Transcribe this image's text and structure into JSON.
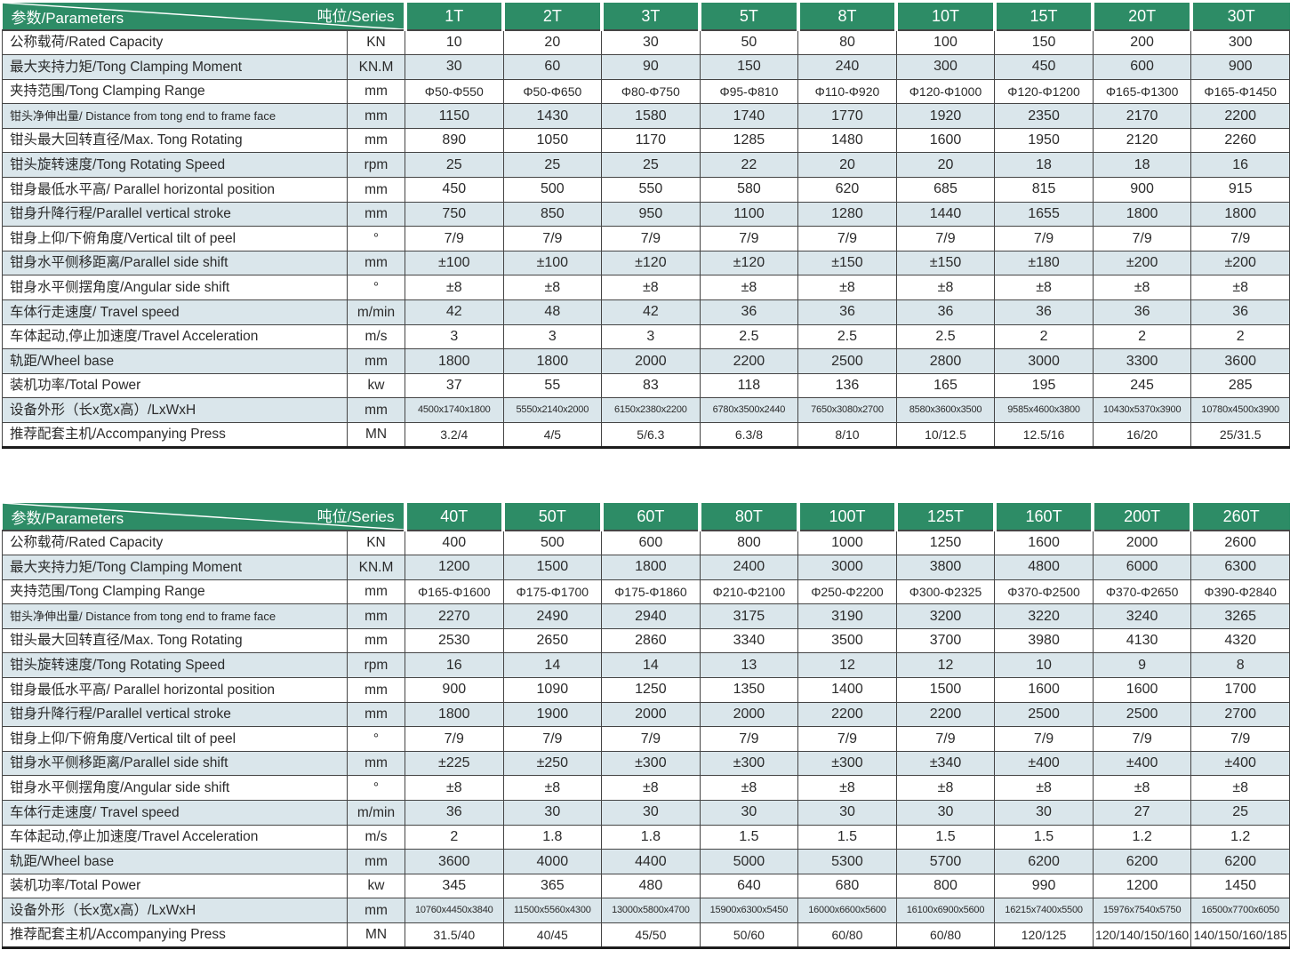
{
  "header": {
    "param_label": "参数/Parameters",
    "series_label": "吨位/Series"
  },
  "colors": {
    "header_green": "#2d8c66",
    "row_alt": "#dae6eb",
    "border": "#454545",
    "text": "#2b2b2b"
  },
  "row_labels": [
    {
      "label": "公称载荷/Rated Capacity",
      "unit": "KN"
    },
    {
      "label": "最大夹持力矩/Tong Clamping Moment",
      "unit": "KN.M"
    },
    {
      "label": "夹持范围/Tong Clamping Range",
      "unit": "mm",
      "data_size": "small"
    },
    {
      "label": "钳头净伸出量/ Distance from tong end to frame face",
      "unit": "mm",
      "label_size": "condensed"
    },
    {
      "label": "钳头最大回转直径/Max. Tong Rotating",
      "unit": "mm"
    },
    {
      "label": "钳头旋转速度/Tong Rotating Speed",
      "unit": "rpm"
    },
    {
      "label": "钳身最低水平高/ Parallel horizontal position",
      "unit": "mm"
    },
    {
      "label": "钳身升降行程/Parallel vertical stroke",
      "unit": "mm"
    },
    {
      "label": "钳身上仰/下俯角度/Vertical tilt of peel",
      "unit": "°"
    },
    {
      "label": "钳身水平侧移距离/Parallel side shift",
      "unit": "mm"
    },
    {
      "label": "钳身水平侧摆角度/Angular side shift",
      "unit": "°"
    },
    {
      "label": "车体行走速度/ Travel speed",
      "unit": "m/min"
    },
    {
      "label": "车体起动,停止加速度/Travel Acceleration",
      "unit": "m/s"
    },
    {
      "label": "轨距/Wheel base",
      "unit": "mm"
    },
    {
      "label": "装机功率/Total Power",
      "unit": "kw"
    },
    {
      "label": "设备外形（长x宽x高）/LxWxH",
      "unit": "mm",
      "data_size": "xsmall"
    },
    {
      "label": "推荐配套主机/Accompanying Press",
      "unit": "MN",
      "data_size": "small"
    }
  ],
  "tables": [
    {
      "columns": [
        "1T",
        "2T",
        "3T",
        "5T",
        "8T",
        "10T",
        "15T",
        "20T",
        "30T"
      ],
      "rows": [
        [
          "10",
          "20",
          "30",
          "50",
          "80",
          "100",
          "150",
          "200",
          "300"
        ],
        [
          "30",
          "60",
          "90",
          "150",
          "240",
          "300",
          "450",
          "600",
          "900"
        ],
        [
          "Φ50-Φ550",
          "Φ50-Φ650",
          "Φ80-Φ750",
          "Φ95-Φ810",
          "Φ110-Φ920",
          "Φ120-Φ1000",
          "Φ120-Φ1200",
          "Φ165-Φ1300",
          "Φ165-Φ1450"
        ],
        [
          "1150",
          "1430",
          "1580",
          "1740",
          "1770",
          "1920",
          "2350",
          "2170",
          "2200"
        ],
        [
          "890",
          "1050",
          "1170",
          "1285",
          "1480",
          "1600",
          "1950",
          "2120",
          "2260"
        ],
        [
          "25",
          "25",
          "25",
          "22",
          "20",
          "20",
          "18",
          "18",
          "16"
        ],
        [
          "450",
          "500",
          "550",
          "580",
          "620",
          "685",
          "815",
          "900",
          "915"
        ],
        [
          "750",
          "850",
          "950",
          "1100",
          "1280",
          "1440",
          "1655",
          "1800",
          "1800"
        ],
        [
          "7/9",
          "7/9",
          "7/9",
          "7/9",
          "7/9",
          "7/9",
          "7/9",
          "7/9",
          "7/9"
        ],
        [
          "±100",
          "±100",
          "±120",
          "±120",
          "±150",
          "±150",
          "±180",
          "±200",
          "±200"
        ],
        [
          "±8",
          "±8",
          "±8",
          "±8",
          "±8",
          "±8",
          "±8",
          "±8",
          "±8"
        ],
        [
          "42",
          "48",
          "42",
          "36",
          "36",
          "36",
          "36",
          "36",
          "36"
        ],
        [
          "3",
          "3",
          "3",
          "2.5",
          "2.5",
          "2.5",
          "2",
          "2",
          "2"
        ],
        [
          "1800",
          "1800",
          "2000",
          "2200",
          "2500",
          "2800",
          "3000",
          "3300",
          "3600"
        ],
        [
          "37",
          "55",
          "83",
          "118",
          "136",
          "165",
          "195",
          "245",
          "285"
        ],
        [
          "4500x1740x1800",
          "5550x2140x2000",
          "6150x2380x2200",
          "6780x3500x2440",
          "7650x3080x2700",
          "8580x3600x3500",
          "9585x4600x3800",
          "10430x5370x3900",
          "10780x4500x3900"
        ],
        [
          "3.2/4",
          "4/5",
          "5/6.3",
          "6.3/8",
          "8/10",
          "10/12.5",
          "12.5/16",
          "16/20",
          "25/31.5"
        ]
      ]
    },
    {
      "columns": [
        "40T",
        "50T",
        "60T",
        "80T",
        "100T",
        "125T",
        "160T",
        "200T",
        "260T"
      ],
      "rows": [
        [
          "400",
          "500",
          "600",
          "800",
          "1000",
          "1250",
          "1600",
          "2000",
          "2600"
        ],
        [
          "1200",
          "1500",
          "1800",
          "2400",
          "3000",
          "3800",
          "4800",
          "6000",
          "6300"
        ],
        [
          "Φ165-Φ1600",
          "Φ175-Φ1700",
          "Φ175-Φ1860",
          "Φ210-Φ2100",
          "Φ250-Φ2200",
          "Φ300-Φ2325",
          "Φ370-Φ2500",
          "Φ370-Φ2650",
          "Φ390-Φ2840"
        ],
        [
          "2270",
          "2490",
          "2940",
          "3175",
          "3190",
          "3200",
          "3220",
          "3240",
          "3265"
        ],
        [
          "2530",
          "2650",
          "2860",
          "3340",
          "3500",
          "3700",
          "3980",
          "4130",
          "4320"
        ],
        [
          "16",
          "14",
          "14",
          "13",
          "12",
          "12",
          "10",
          "9",
          "8"
        ],
        [
          "900",
          "1090",
          "1250",
          "1350",
          "1400",
          "1500",
          "1600",
          "1600",
          "1700"
        ],
        [
          "1800",
          "1900",
          "2000",
          "2000",
          "2200",
          "2200",
          "2500",
          "2500",
          "2700"
        ],
        [
          "7/9",
          "7/9",
          "7/9",
          "7/9",
          "7/9",
          "7/9",
          "7/9",
          "7/9",
          "7/9"
        ],
        [
          "±225",
          "±250",
          "±300",
          "±300",
          "±300",
          "±340",
          "±400",
          "±400",
          "±400"
        ],
        [
          "±8",
          "±8",
          "±8",
          "±8",
          "±8",
          "±8",
          "±8",
          "±8",
          "±8"
        ],
        [
          "36",
          "30",
          "30",
          "30",
          "30",
          "30",
          "30",
          "27",
          "25"
        ],
        [
          "2",
          "1.8",
          "1.8",
          "1.5",
          "1.5",
          "1.5",
          "1.5",
          "1.2",
          "1.2"
        ],
        [
          "3600",
          "4000",
          "4400",
          "5000",
          "5300",
          "5700",
          "6200",
          "6200",
          "6200"
        ],
        [
          "345",
          "365",
          "480",
          "640",
          "680",
          "800",
          "990",
          "1200",
          "1450"
        ],
        [
          "10760x4450x3840",
          "11500x5560x4300",
          "13000x5800x4700",
          "15900x6300x5450",
          "16000x6600x5600",
          "16100x6900x5600",
          "16215x7400x5500",
          "15976x7540x5750",
          "16500x7700x6050"
        ],
        [
          "31.5/40",
          "40/45",
          "45/50",
          "50/60",
          "60/80",
          "60/80",
          "120/125",
          "120/140/150/160",
          "140/150/160/185"
        ]
      ]
    }
  ]
}
